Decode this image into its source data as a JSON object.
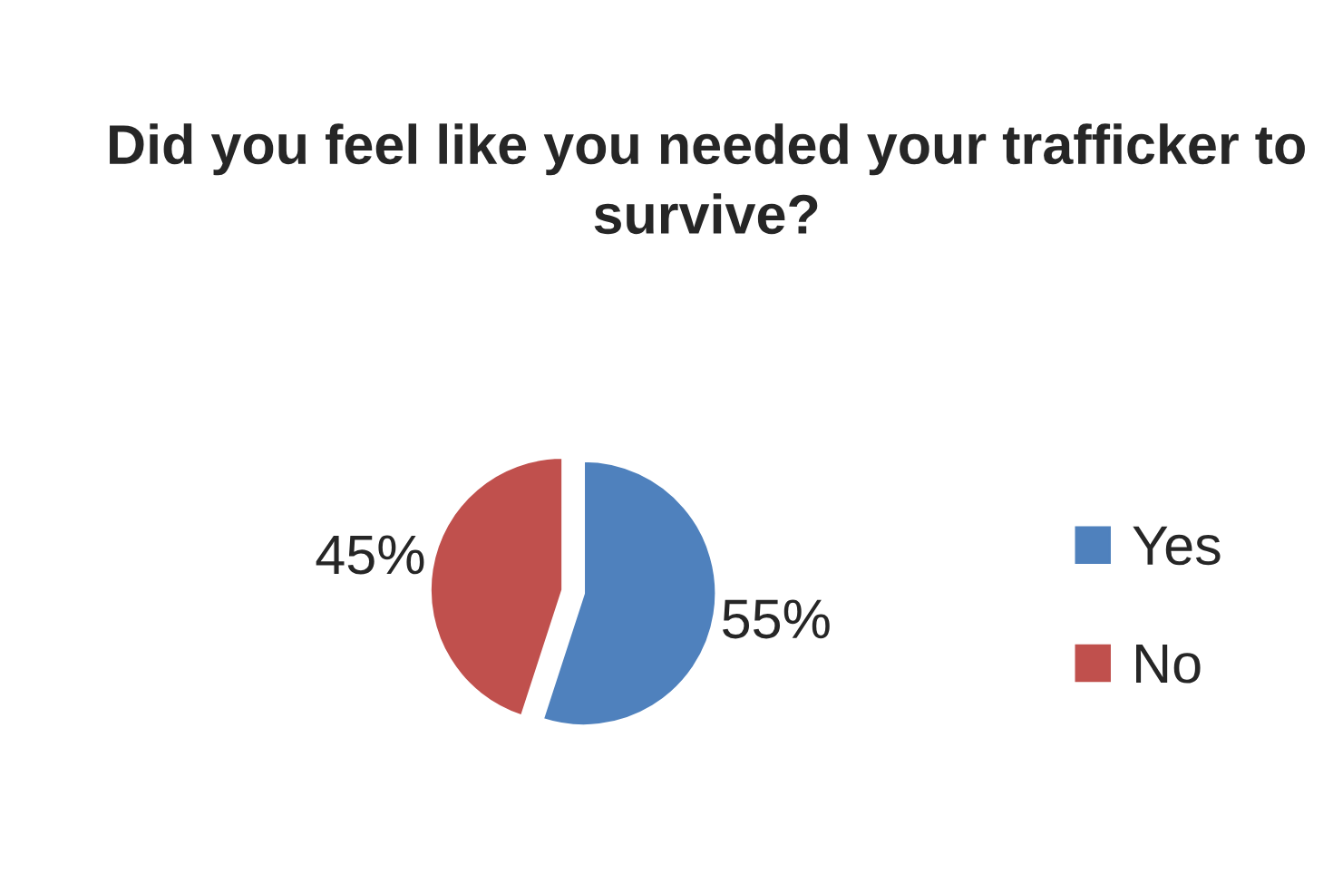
{
  "chart_data": {
    "type": "pie",
    "title": "Did you feel like you needed your trafficker to survive?",
    "categories": [
      "Yes",
      "No"
    ],
    "values": [
      55,
      45
    ],
    "colors": [
      "#4f81bd",
      "#c0504d"
    ],
    "value_labels": [
      "55%",
      "45%"
    ],
    "legend": "right"
  }
}
